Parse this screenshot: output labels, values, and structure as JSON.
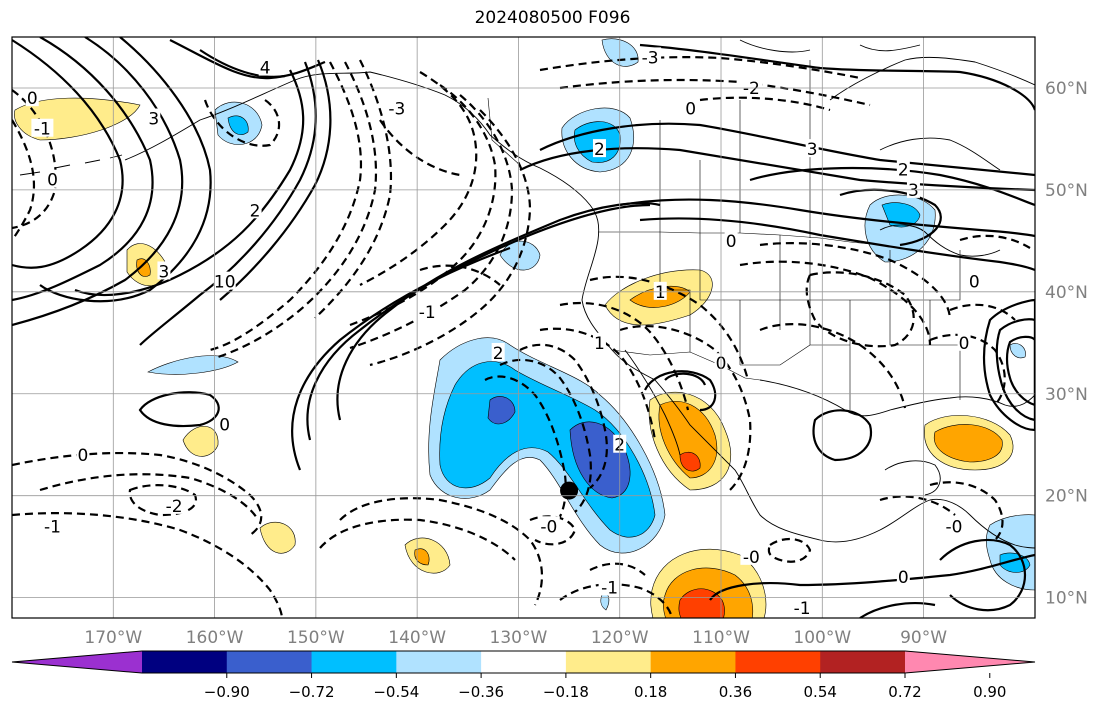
{
  "title": "2024080500 F096",
  "map": {
    "lon_min": -180,
    "lon_max": -79,
    "lat_min": 8,
    "lat_max": 65,
    "lon_ticks": [
      {
        "value": -170,
        "label": "170°W"
      },
      {
        "value": -160,
        "label": "160°W"
      },
      {
        "value": -150,
        "label": "150°W"
      },
      {
        "value": -140,
        "label": "140°W"
      },
      {
        "value": -130,
        "label": "130°W"
      },
      {
        "value": -120,
        "label": "120°W"
      },
      {
        "value": -110,
        "label": "110°W"
      },
      {
        "value": -100,
        "label": "100°W"
      },
      {
        "value": -90,
        "label": "90°W"
      }
    ],
    "lat_ticks": [
      {
        "value": 10,
        "label": "10°N"
      },
      {
        "value": 20,
        "label": "20°N"
      },
      {
        "value": 30,
        "label": "30°N"
      },
      {
        "value": 40,
        "label": "40°N"
      },
      {
        "value": 50,
        "label": "50°N"
      },
      {
        "value": 60,
        "label": "60°N"
      }
    ],
    "marker": {
      "lon": -125,
      "lat": 20.5,
      "color": "#000000"
    },
    "contour_labels": [
      {
        "text": "0",
        "lon": -178,
        "lat": 59
      },
      {
        "text": "-1",
        "lon": -177,
        "lat": 56
      },
      {
        "text": "0",
        "lon": -176,
        "lat": 51
      },
      {
        "text": "3",
        "lon": -166,
        "lat": 57
      },
      {
        "text": "4",
        "lon": -155,
        "lat": 62
      },
      {
        "text": "2",
        "lon": -156,
        "lat": 48
      },
      {
        "text": "10",
        "lon": -159,
        "lat": 41
      },
      {
        "text": "-3",
        "lon": -142,
        "lat": 58
      },
      {
        "text": "-1",
        "lon": -139,
        "lat": 38
      },
      {
        "text": "2",
        "lon": -132,
        "lat": 34
      },
      {
        "text": "-3",
        "lon": -117,
        "lat": 63
      },
      {
        "text": "0",
        "lon": -113,
        "lat": 58
      },
      {
        "text": "2",
        "lon": -122,
        "lat": 54
      },
      {
        "text": "-2",
        "lon": -107,
        "lat": 60
      },
      {
        "text": "3",
        "lon": -101,
        "lat": 54
      },
      {
        "text": "2",
        "lon": -92,
        "lat": 52
      },
      {
        "text": "3",
        "lon": -91,
        "lat": 50
      },
      {
        "text": "0",
        "lon": -109,
        "lat": 45
      },
      {
        "text": "1",
        "lon": -122,
        "lat": 35
      },
      {
        "text": "1",
        "lon": -116,
        "lat": 40
      },
      {
        "text": "0",
        "lon": -110,
        "lat": 33
      },
      {
        "text": "0",
        "lon": -86,
        "lat": 35
      },
      {
        "text": "0",
        "lon": -85,
        "lat": 41
      },
      {
        "text": "2",
        "lon": -120,
        "lat": 25
      },
      {
        "text": "0",
        "lon": -173,
        "lat": 24
      },
      {
        "text": "0",
        "lon": -159,
        "lat": 27
      },
      {
        "text": "-2",
        "lon": -164,
        "lat": 19
      },
      {
        "text": "-1",
        "lon": -176,
        "lat": 17
      },
      {
        "text": "-0",
        "lon": -127,
        "lat": 17
      },
      {
        "text": "-1",
        "lon": -121,
        "lat": 11
      },
      {
        "text": "-0",
        "lon": -107,
        "lat": 14
      },
      {
        "text": "0",
        "lon": -92,
        "lat": 12
      },
      {
        "text": "-0",
        "lon": -87,
        "lat": 17
      },
      {
        "text": "-1",
        "lon": -102,
        "lat": 9
      },
      {
        "text": "3",
        "lon": -165,
        "lat": 42
      }
    ]
  },
  "colorbar": {
    "colors": [
      "#9b30d0",
      "#000080",
      "#3a5fcd",
      "#00bfff",
      "#b0e2ff",
      "#ffffff",
      "#ffec8b",
      "#ffa500",
      "#ff4000",
      "#b22222",
      "#ff88b0"
    ],
    "ticks": [
      "−0.90",
      "−0.72",
      "−0.54",
      "−0.36",
      "−0.18",
      "0.18",
      "0.36",
      "0.54",
      "0.72",
      "0.90"
    ]
  }
}
